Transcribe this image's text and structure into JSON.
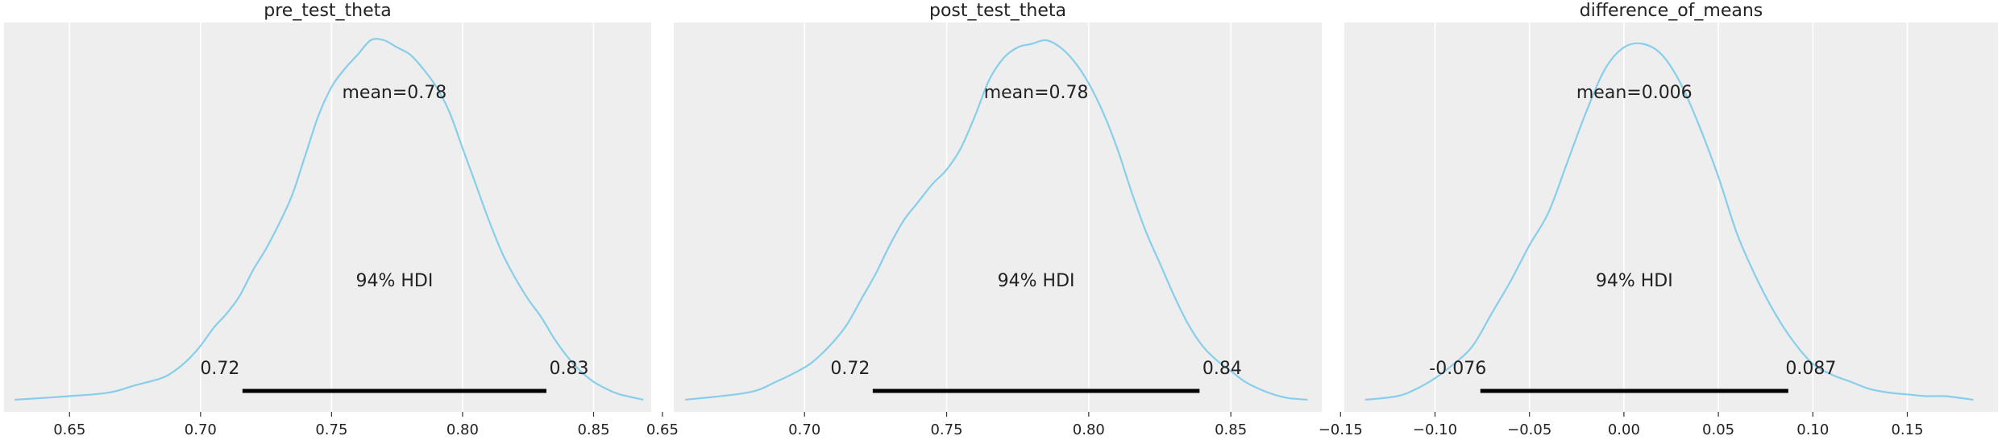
{
  "chart_data": [
    {
      "type": "area",
      "title": "pre_test_theta",
      "xlim": [
        0.625,
        0.872
      ],
      "xticks": [
        0.65,
        0.7,
        0.75,
        0.8,
        0.85
      ],
      "xtick_labels": [
        "0.65",
        "0.70",
        "0.75",
        "0.80",
        "0.85"
      ],
      "mean_label": "mean=0.78",
      "hdi_label": "94% HDI",
      "hdi": [
        0.716,
        0.832
      ],
      "hdi_lower_label": "0.72",
      "hdi_upper_label": "0.83",
      "grid": true,
      "density": {
        "x": [
          0.629,
          0.65,
          0.665,
          0.675,
          0.685,
          0.69,
          0.695,
          0.7,
          0.705,
          0.71,
          0.715,
          0.72,
          0.725,
          0.73,
          0.735,
          0.74,
          0.745,
          0.75,
          0.755,
          0.76,
          0.765,
          0.77,
          0.775,
          0.78,
          0.785,
          0.79,
          0.795,
          0.8,
          0.805,
          0.81,
          0.815,
          0.82,
          0.825,
          0.83,
          0.835,
          0.84,
          0.845,
          0.85,
          0.855,
          0.86,
          0.869
        ],
        "y": [
          0.0,
          0.01,
          0.02,
          0.04,
          0.06,
          0.08,
          0.11,
          0.15,
          0.2,
          0.24,
          0.29,
          0.36,
          0.42,
          0.49,
          0.57,
          0.68,
          0.79,
          0.87,
          0.92,
          0.96,
          1.0,
          1.0,
          0.98,
          0.96,
          0.92,
          0.87,
          0.8,
          0.7,
          0.6,
          0.5,
          0.41,
          0.34,
          0.28,
          0.23,
          0.17,
          0.12,
          0.08,
          0.05,
          0.03,
          0.015,
          0.0
        ]
      }
    },
    {
      "type": "area",
      "title": "post_test_theta",
      "xlim": [
        0.654,
        0.882
      ],
      "xticks": [
        0.65,
        0.7,
        0.75,
        0.8,
        0.85
      ],
      "xtick_labels": [
        "0.65",
        "0.70",
        "0.75",
        "0.80",
        "0.85"
      ],
      "mean_label": "mean=0.78",
      "hdi_label": "94% HDI",
      "hdi": [
        0.724,
        0.839
      ],
      "hdi_lower_label": "0.72",
      "hdi_upper_label": "0.84",
      "grid": true,
      "density": {
        "x": [
          0.658,
          0.68,
          0.69,
          0.7,
          0.705,
          0.71,
          0.715,
          0.72,
          0.725,
          0.73,
          0.735,
          0.74,
          0.745,
          0.75,
          0.755,
          0.76,
          0.765,
          0.77,
          0.775,
          0.78,
          0.785,
          0.79,
          0.795,
          0.8,
          0.805,
          0.81,
          0.815,
          0.82,
          0.825,
          0.83,
          0.835,
          0.84,
          0.845,
          0.85,
          0.855,
          0.86,
          0.865,
          0.87,
          0.877
        ],
        "y": [
          0.0,
          0.02,
          0.05,
          0.09,
          0.12,
          0.16,
          0.21,
          0.28,
          0.35,
          0.43,
          0.5,
          0.55,
          0.6,
          0.64,
          0.7,
          0.79,
          0.89,
          0.95,
          0.98,
          0.99,
          1.0,
          0.98,
          0.94,
          0.88,
          0.8,
          0.7,
          0.58,
          0.47,
          0.38,
          0.29,
          0.21,
          0.15,
          0.11,
          0.08,
          0.05,
          0.03,
          0.015,
          0.005,
          0.0
        ]
      }
    },
    {
      "type": "area",
      "title": "difference_of_means",
      "xlim": [
        -0.148,
        0.198
      ],
      "xticks": [
        -0.15,
        -0.1,
        -0.05,
        0.0,
        0.05,
        0.1,
        0.15
      ],
      "xtick_labels": [
        "−0.15",
        "−0.10",
        "−0.05",
        "0.00",
        "0.05",
        "0.10",
        "0.15"
      ],
      "mean_label": "mean=0.006",
      "hdi_label": "94% HDI",
      "hdi": [
        -0.076,
        0.087
      ],
      "hdi_lower_label": "-0.076",
      "hdi_upper_label": "0.087",
      "grid": true,
      "density": {
        "x": [
          -0.137,
          -0.12,
          -0.11,
          -0.1,
          -0.09,
          -0.08,
          -0.07,
          -0.06,
          -0.05,
          -0.04,
          -0.03,
          -0.02,
          -0.01,
          0.0,
          0.01,
          0.02,
          0.03,
          0.04,
          0.05,
          0.06,
          0.07,
          0.08,
          0.09,
          0.1,
          0.11,
          0.12,
          0.13,
          0.14,
          0.15,
          0.16,
          0.17,
          0.185
        ],
        "y": [
          0.0,
          0.01,
          0.03,
          0.06,
          0.1,
          0.15,
          0.24,
          0.33,
          0.43,
          0.52,
          0.66,
          0.8,
          0.92,
          0.98,
          0.99,
          0.96,
          0.88,
          0.76,
          0.62,
          0.46,
          0.34,
          0.24,
          0.16,
          0.1,
          0.07,
          0.05,
          0.03,
          0.02,
          0.015,
          0.01,
          0.01,
          0.0
        ]
      }
    }
  ]
}
